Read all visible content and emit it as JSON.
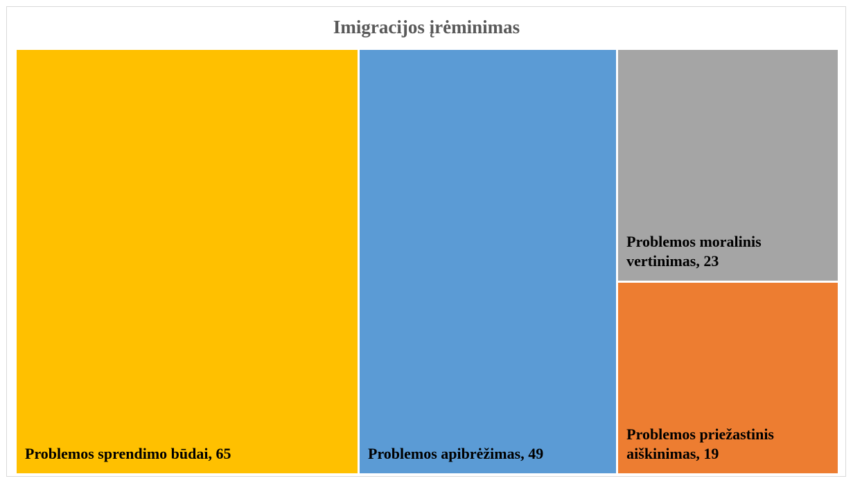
{
  "chart_data": {
    "type": "treemap",
    "title": "Imigracijos įrėminimas",
    "categories": [
      "Problemos sprendimo būdai",
      "Problemos apibrėžimas",
      "Problemos moralinis vertinimas",
      "Problemos priežastinis aiškinimas"
    ],
    "values": [
      65,
      49,
      23,
      19
    ],
    "colors": [
      "#ffc000",
      "#5b9bd5",
      "#a5a5a5",
      "#ed7d31"
    ],
    "label_separator": ", "
  }
}
